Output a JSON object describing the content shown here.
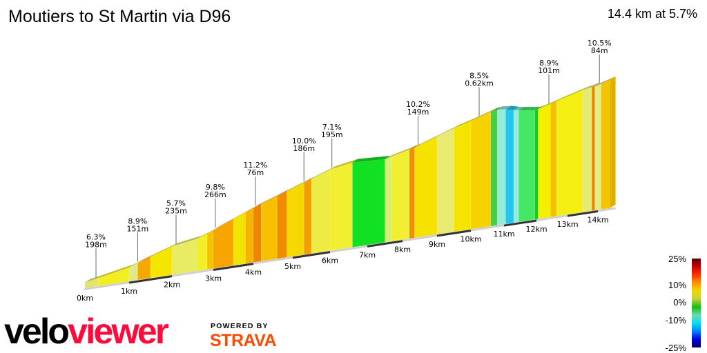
{
  "header": {
    "title": "Moutiers to St Martin via D96",
    "summary": "14.4 km at 5.7%"
  },
  "chart_data": {
    "type": "area",
    "subtype": "3d-gradient-elevation-profile",
    "x_unit": "km",
    "distance_km": 14.4,
    "average_gradient_pct": 5.7,
    "x_ticks": [
      "0km",
      "1km",
      "2km",
      "3km",
      "4km",
      "5km",
      "6km",
      "7km",
      "8km",
      "9km",
      "10km",
      "11km",
      "12km",
      "13km",
      "14km"
    ],
    "annotations": [
      {
        "km": 0.25,
        "gradient": "6.3%",
        "length": "198m"
      },
      {
        "km": 1.2,
        "gradient": "8.9%",
        "length": "151m"
      },
      {
        "km": 2.1,
        "gradient": "5.7%",
        "length": "235m"
      },
      {
        "km": 3.05,
        "gradient": "9.8%",
        "length": "266m"
      },
      {
        "km": 4.05,
        "gradient": "11.2%",
        "length": "76m"
      },
      {
        "km": 5.3,
        "gradient": "10.0%",
        "length": "186m"
      },
      {
        "km": 6.05,
        "gradient": "7.1%",
        "length": "195m"
      },
      {
        "km": 8.45,
        "gradient": "10.2%",
        "length": "149m"
      },
      {
        "km": 10.25,
        "gradient": "8.5%",
        "length": "0.62km"
      },
      {
        "km": 12.4,
        "gradient": "8.9%",
        "length": "101m"
      },
      {
        "km": 14.05,
        "gradient": "10.5%",
        "length": "84m"
      }
    ],
    "segments": [
      [
        0.0,
        0.3,
        "#e4e46a"
      ],
      [
        0.3,
        1.0,
        "#f2ee22"
      ],
      [
        1.0,
        1.2,
        "#e2e888"
      ],
      [
        1.2,
        1.5,
        "#f5a800"
      ],
      [
        1.5,
        2.0,
        "#f5e600"
      ],
      [
        2.0,
        2.6,
        "#e8ec62"
      ],
      [
        2.6,
        2.85,
        "#f2ee28"
      ],
      [
        2.85,
        3.0,
        "#f5c400"
      ],
      [
        3.0,
        3.5,
        "#f5a400"
      ],
      [
        3.5,
        3.8,
        "#f2e400"
      ],
      [
        3.8,
        4.0,
        "#f5b400"
      ],
      [
        4.0,
        4.2,
        "#f08400"
      ],
      [
        4.2,
        4.6,
        "#f5c000"
      ],
      [
        4.6,
        4.85,
        "#f08c00"
      ],
      [
        4.85,
        5.3,
        "#f5d800"
      ],
      [
        5.3,
        5.5,
        "#f2a000"
      ],
      [
        5.5,
        6.0,
        "#eeec44"
      ],
      [
        6.0,
        6.6,
        "#f2ee32"
      ],
      [
        6.6,
        7.5,
        "#12e022"
      ],
      [
        7.5,
        7.7,
        "#d8ee70"
      ],
      [
        7.7,
        8.2,
        "#f2ee32"
      ],
      [
        8.2,
        8.35,
        "#f09000"
      ],
      [
        8.35,
        9.0,
        "#f5e200"
      ],
      [
        9.0,
        9.5,
        "#e8ea72"
      ],
      [
        9.5,
        10.0,
        "#f5e400"
      ],
      [
        10.0,
        10.6,
        "#f5d200"
      ],
      [
        10.6,
        10.8,
        "#44d044"
      ],
      [
        10.8,
        11.05,
        "#92ecd8"
      ],
      [
        11.05,
        11.3,
        "#20c8f0"
      ],
      [
        11.3,
        11.45,
        "#92ecd8"
      ],
      [
        11.45,
        11.95,
        "#44e864"
      ],
      [
        11.95,
        12.05,
        "#10d010"
      ],
      [
        12.05,
        12.45,
        "#f5ee00"
      ],
      [
        12.45,
        12.65,
        "#f5c000"
      ],
      [
        12.65,
        13.5,
        "#f5ee12"
      ],
      [
        13.5,
        13.8,
        "#e6ea74"
      ],
      [
        13.8,
        13.9,
        "#f08000"
      ],
      [
        13.9,
        14.1,
        "#e0ee84"
      ],
      [
        14.1,
        14.4,
        "#f5c400"
      ]
    ],
    "legend": {
      "labels": [
        "25%",
        "10%",
        "0%",
        "-10%",
        "-25%"
      ],
      "colors": [
        "#5a0000",
        "#c80000",
        "#ff3000",
        "#ff9000",
        "#f0d800",
        "#c8d040",
        "#10c010",
        "#70d8b0",
        "#00e0f0",
        "#0080ff",
        "#0000e0",
        "#000060"
      ]
    }
  },
  "branding": {
    "logo_left": "velo",
    "logo_right": "viewer",
    "powered_by": "POWERED BY",
    "strava": "STRAVA"
  }
}
